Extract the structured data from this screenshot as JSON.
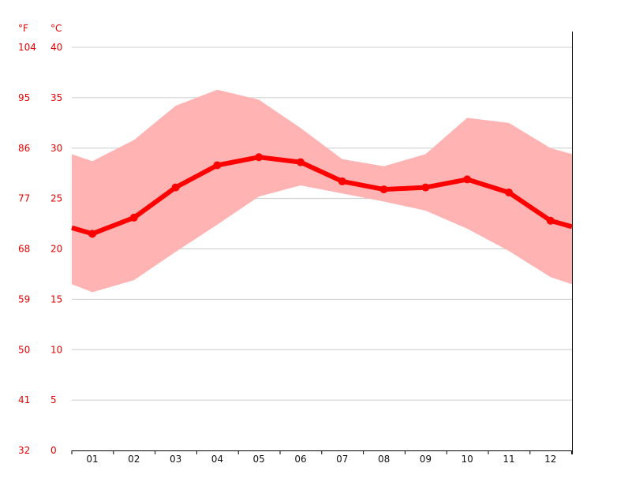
{
  "chart_data": {
    "type": "area",
    "xlabel": "",
    "ylabel": "",
    "units": {
      "fahrenheit": "°F",
      "celsius": "°C"
    },
    "categories": [
      "01",
      "02",
      "03",
      "04",
      "05",
      "06",
      "07",
      "08",
      "09",
      "10",
      "11",
      "12"
    ],
    "ylim": [
      0,
      40
    ],
    "y_ticks_celsius": [
      "0",
      "5",
      "10",
      "15",
      "20",
      "25",
      "30",
      "35",
      "40"
    ],
    "y_ticks_fahrenheit": [
      "32",
      "41",
      "50",
      "59",
      "68",
      "77",
      "86",
      "95",
      "104"
    ],
    "grid": true,
    "series": [
      {
        "values": [
          21.5,
          23.1,
          26.1,
          28.3,
          29.1,
          28.6,
          26.7,
          25.9,
          26.1,
          26.9,
          25.6,
          22.8
        ]
      }
    ],
    "band": {
      "upper": [
        28.7,
        30.8,
        34.2,
        35.8,
        34.8,
        32.0,
        28.9,
        28.2,
        29.4,
        33.0,
        32.5,
        30.0
      ],
      "lower": [
        15.7,
        16.9,
        19.7,
        22.4,
        25.2,
        26.3,
        25.5,
        24.7,
        23.8,
        22.0,
        19.8,
        17.2
      ]
    },
    "line_start_value": 22.1,
    "line_end_value": 22.2,
    "band_start_upper": 29.4,
    "band_end_upper": 29.4,
    "band_start_lower": 16.5,
    "band_end_lower": 16.5,
    "colors": {
      "line": "#ff0000",
      "band": "#ffb3b3",
      "grid": "#cccccc",
      "ticks_y": "#e60000",
      "ticks_x": "#111111"
    }
  }
}
